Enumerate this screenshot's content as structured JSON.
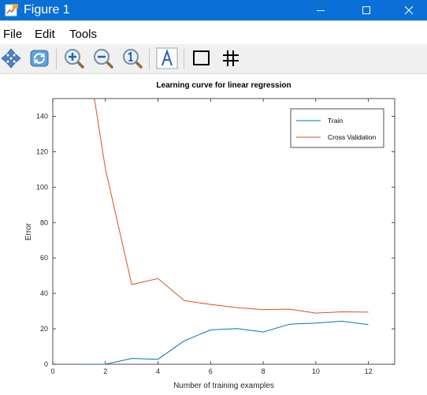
{
  "window": {
    "title": "Figure 1",
    "icons": {
      "app": "matlab-figure-icon",
      "minimize": "minimize-icon",
      "maximize": "maximize-icon",
      "close": "close-icon"
    }
  },
  "menu": {
    "file": "File",
    "edit": "Edit",
    "tools": "Tools"
  },
  "toolbar": {
    "tools": [
      "pan-icon",
      "rotate-icon",
      "zoom-in-icon",
      "zoom-out-icon",
      "reset-zoom-icon",
      "insert-text-icon",
      "box-icon",
      "grid-icon"
    ]
  },
  "colors": {
    "titlebar": "#0a6fd6",
    "train": "#0072bd",
    "cv": "#d95319"
  },
  "chart_data": {
    "type": "line",
    "title": "Learning curve for linear regression",
    "xlabel": "Number of training examples",
    "ylabel": "Error",
    "xlim": [
      0,
      13
    ],
    "ylim": [
      0,
      150
    ],
    "xticks": [
      "0",
      "2",
      "4",
      "6",
      "8",
      "10",
      "12"
    ],
    "yticks": [
      "0",
      "20",
      "40",
      "60",
      "80",
      "100",
      "120",
      "140"
    ],
    "legend_position": "top-right",
    "grid": false,
    "x": [
      1,
      2,
      3,
      4,
      5,
      6,
      7,
      8,
      9,
      10,
      11,
      12
    ],
    "series": [
      {
        "name": "Train",
        "color": "#0072bd",
        "values": [
          0,
          0,
          3.3,
          2.8,
          13.2,
          19.4,
          20.1,
          18.2,
          22.6,
          23.3,
          24.3,
          22.4
        ]
      },
      {
        "name": "Cross Validation",
        "color": "#d95319",
        "values": [
          205,
          110.3,
          45.0,
          48.4,
          35.9,
          33.8,
          31.9,
          30.9,
          31.1,
          28.9,
          29.6,
          29.4
        ]
      }
    ]
  }
}
